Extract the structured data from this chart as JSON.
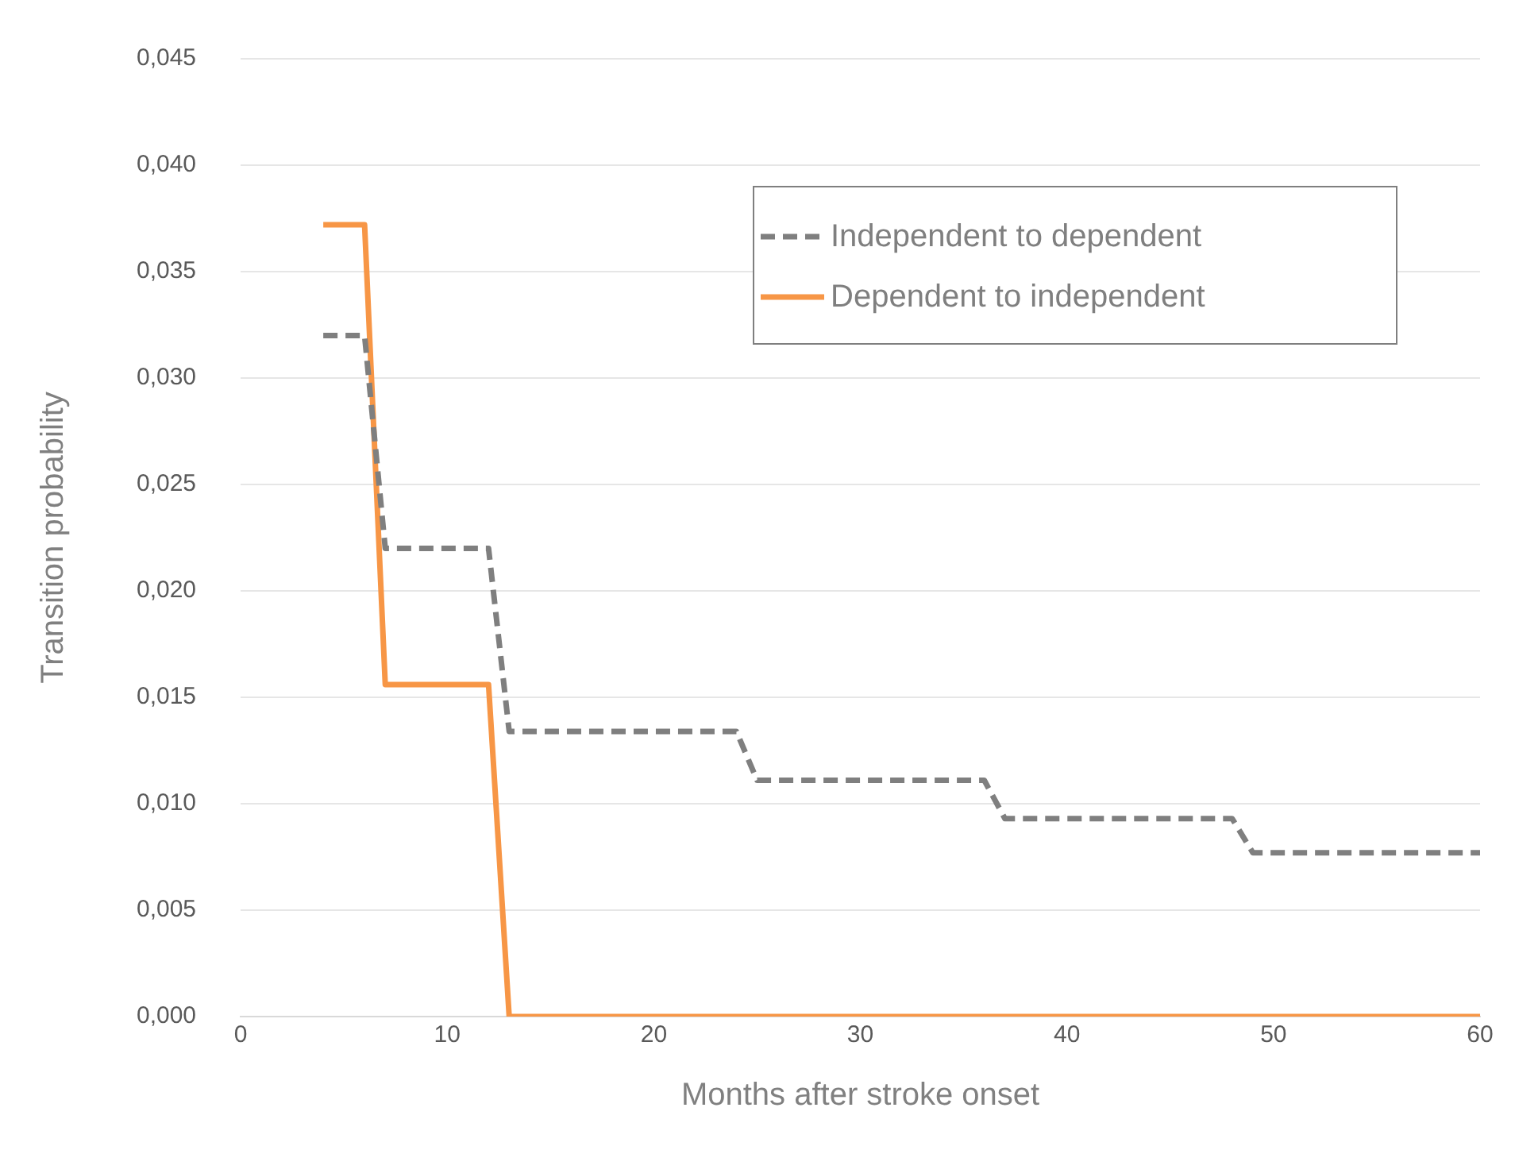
{
  "chart_data": {
    "type": "line",
    "xlabel": "Months after stroke onset",
    "ylabel": "Transition probability",
    "xlim": [
      0,
      60
    ],
    "xticks": [
      0,
      10,
      20,
      30,
      40,
      50,
      60
    ],
    "ylim": [
      0,
      0.045
    ],
    "yticks": [
      {
        "value": 0,
        "label": "0,000"
      },
      {
        "value": 0.005,
        "label": "0,005"
      },
      {
        "value": 0.01,
        "label": "0,010"
      },
      {
        "value": 0.015,
        "label": "0,015"
      },
      {
        "value": 0.02,
        "label": "0,020"
      },
      {
        "value": 0.025,
        "label": "0,025"
      },
      {
        "value": 0.03,
        "label": "0,030"
      },
      {
        "value": 0.035,
        "label": "0,035"
      },
      {
        "value": 0.04,
        "label": "0,040"
      },
      {
        "value": 0.045,
        "label": "0,045"
      }
    ],
    "grid": "y",
    "legend": "top right",
    "marker": "none",
    "series": [
      {
        "name": "Independent to dependent",
        "color": "#7f7f7f",
        "line_style": "dashed",
        "x": [
          4,
          6,
          7,
          12,
          13,
          24,
          25,
          36,
          37,
          48,
          49,
          60
        ],
        "values": [
          0.032,
          0.032,
          0.022,
          0.022,
          0.0134,
          0.0134,
          0.0111,
          0.0111,
          0.0093,
          0.0093,
          0.0077,
          0.0077
        ]
      },
      {
        "name": "Dependent to independent",
        "color": "#f79646",
        "line_style": "solid",
        "x": [
          4,
          6,
          7,
          12,
          13,
          60
        ],
        "values": [
          0.0372,
          0.0372,
          0.0156,
          0.0156,
          0,
          0
        ]
      }
    ]
  }
}
